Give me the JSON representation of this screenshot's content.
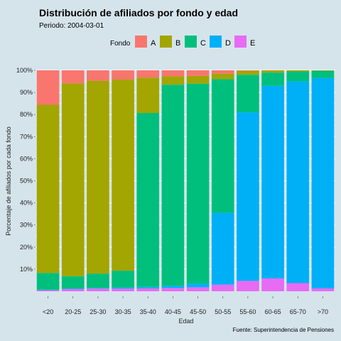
{
  "chart_data": {
    "type": "bar",
    "stacked": true,
    "title": "Distribución de afiliados por fondo y edad",
    "subtitle": "Periodo: 2004-03-01",
    "xlabel": "Edad",
    "ylabel": "Porcentaje de afiliados por cada fondo",
    "caption": "Fuente: Superintendencia de Pensiones",
    "legend_title": "Fondo",
    "legend_position": "top",
    "ylim": [
      0,
      100
    ],
    "yticks": [
      "10%",
      "20%",
      "30%",
      "40%",
      "50%",
      "60%",
      "70%",
      "80%",
      "90%",
      "100%"
    ],
    "categories": [
      "<20",
      "20-25",
      "25-30",
      "30-35",
      "35-40",
      "40-45",
      "45-50",
      "50-55",
      "55-60",
      "60-65",
      "65-70",
      ">70"
    ],
    "series": [
      {
        "name": "E",
        "color": "#e76bf3",
        "values": [
          0.5,
          1.0,
          1.2,
          1.2,
          1.3,
          1.5,
          1.8,
          3.0,
          4.7,
          5.8,
          3.7,
          1.3
        ]
      },
      {
        "name": "D",
        "color": "#00b0f6",
        "values": [
          0.2,
          0.3,
          0.3,
          0.5,
          0.7,
          1.0,
          1.7,
          32.5,
          76.3,
          87.2,
          91.3,
          95.2
        ]
      },
      {
        "name": "C",
        "color": "#00bf7d",
        "values": [
          7.6,
          5.5,
          6.5,
          7.6,
          78.7,
          91.0,
          90.5,
          60.5,
          17.0,
          6.0,
          4.5,
          3.3
        ]
      },
      {
        "name": "B",
        "color": "#a3a500",
        "values": [
          76.1,
          87.3,
          87.3,
          86.5,
          16.0,
          3.8,
          3.5,
          2.5,
          1.8,
          1.0,
          0.5,
          0.2
        ]
      },
      {
        "name": "A",
        "color": "#f8766d",
        "values": [
          15.6,
          5.9,
          4.7,
          4.2,
          3.3,
          2.7,
          2.5,
          1.5,
          0.2,
          0.0,
          0.0,
          0.0
        ]
      }
    ],
    "legend_order": [
      "A",
      "B",
      "C",
      "D",
      "E"
    ],
    "grid": true
  }
}
